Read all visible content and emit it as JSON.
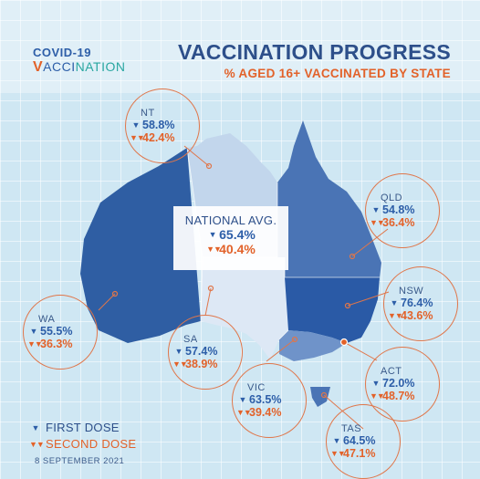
{
  "logo": {
    "line1": "COVID-19",
    "line2_tick": "V",
    "line2_a": "ACCI",
    "line2_b": "NATION"
  },
  "title": "VACCINATION PROGRESS",
  "subtitle": "% AGED 16+ VACCINATED BY STATE",
  "national": {
    "label": "NATIONAL AVG.",
    "first": "65.4%",
    "second": "40.4%"
  },
  "states": [
    {
      "key": "nt",
      "name": "NT",
      "first": "58.8%",
      "second": "42.4%"
    },
    {
      "key": "qld",
      "name": "QLD",
      "first": "54.8%",
      "second": "36.4%"
    },
    {
      "key": "wa",
      "name": "WA",
      "first": "55.5%",
      "second": "36.3%"
    },
    {
      "key": "sa",
      "name": "SA",
      "first": "57.4%",
      "second": "38.9%"
    },
    {
      "key": "nsw",
      "name": "NSW",
      "first": "76.4%",
      "second": "43.6%"
    },
    {
      "key": "act",
      "name": "ACT",
      "first": "72.0%",
      "second": "48.7%"
    },
    {
      "key": "vic",
      "name": "VIC",
      "first": "63.5%",
      "second": "39.4%"
    },
    {
      "key": "tas",
      "name": "TAS",
      "first": "64.5%",
      "second": "47.1%"
    }
  ],
  "legend": {
    "first": "FIRST DOSE",
    "second": "SECOND DOSE"
  },
  "date": "8 SEPTEMBER 2021",
  "colors": {
    "wa": "#2f5ea3",
    "nt": "#c2d6ec",
    "sa": "#dde8f5",
    "qld": "#4a74b5",
    "nsw": "#2a5aa6",
    "vic": "#6f93c9",
    "tas": "#4a74b5",
    "accent": "#e2622a"
  }
}
